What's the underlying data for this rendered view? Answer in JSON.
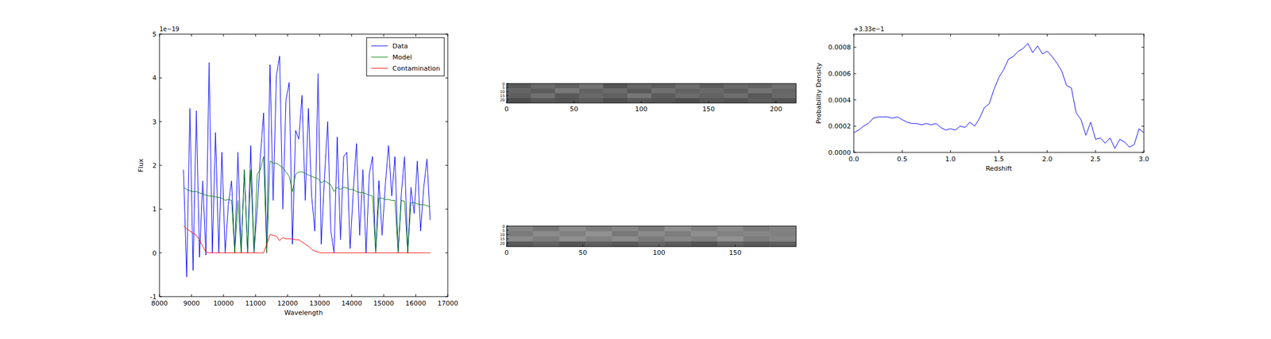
{
  "chart_data": [
    {
      "type": "line",
      "x_label": "Wavelength",
      "y_label": "Flux",
      "annotations": [
        "1e−19"
      ],
      "xlim": [
        8000,
        17000
      ],
      "xticks": [
        8000,
        9000,
        10000,
        11000,
        12000,
        13000,
        14000,
        15000,
        16000,
        17000
      ],
      "ylim": [
        -1,
        5
      ],
      "yticks": [
        -1,
        0,
        1,
        2,
        3,
        4,
        5
      ],
      "legend": "upper right",
      "x": [
        8750,
        8850,
        8950,
        9050,
        9150,
        9250,
        9350,
        9450,
        9550,
        9650,
        9750,
        9850,
        9950,
        10050,
        10150,
        10250,
        10350,
        10450,
        10550,
        10650,
        10750,
        10850,
        10950,
        11050,
        11150,
        11250,
        11350,
        11450,
        11550,
        11650,
        11750,
        11850,
        11950,
        12050,
        12150,
        12250,
        12350,
        12450,
        12550,
        12650,
        12750,
        12850,
        12950,
        13050,
        13150,
        13250,
        13350,
        13450,
        13550,
        13650,
        13750,
        13850,
        13950,
        14050,
        14150,
        14250,
        14350,
        14450,
        14550,
        14650,
        14750,
        14850,
        14950,
        15050,
        15150,
        15250,
        15350,
        15450,
        15550,
        15650,
        15750,
        15850,
        15950,
        16050,
        16150,
        16250,
        16350,
        16450
      ],
      "series": [
        {
          "name": "Data",
          "color": "#0000ff",
          "values": [
            1.9,
            -0.55,
            3.3,
            -0.4,
            3.25,
            -0.1,
            1.65,
            -0.05,
            4.35,
            0.0,
            2.75,
            0.0,
            2.3,
            0.0,
            1.1,
            1.65,
            0.0,
            2.3,
            0.0,
            1.9,
            0.0,
            2.45,
            0.0,
            1.0,
            2.2,
            3.2,
            0.0,
            4.3,
            1.2,
            4.05,
            4.5,
            1.0,
            3.5,
            3.9,
            0.2,
            2.8,
            2.6,
            3.6,
            1.2,
            3.3,
            1.3,
            0.5,
            4.1,
            0.2,
            1.7,
            3.0,
            0.5,
            0.0,
            2.65,
            0.3,
            2.2,
            2.3,
            0.1,
            1.4,
            2.5,
            0.4,
            1.9,
            0.0,
            1.8,
            2.2,
            0.0,
            1.65,
            0.4,
            1.55,
            2.45,
            1.3,
            2.2,
            0.0,
            1.35,
            2.2,
            0.0,
            1.5,
            0.9,
            2.1,
            0.5,
            1.5,
            2.15,
            0.75
          ]
        },
        {
          "name": "Model",
          "color": "#008000",
          "values": [
            1.5,
            1.45,
            1.42,
            1.4,
            1.4,
            1.37,
            1.35,
            1.32,
            1.3,
            1.3,
            1.28,
            1.27,
            1.25,
            1.2,
            1.22,
            1.2,
            0,
            1.2,
            0,
            1.9,
            0,
            1.9,
            0,
            1.8,
            1.9,
            2.2,
            0,
            2.1,
            2.05,
            2.05,
            2.0,
            1.95,
            1.85,
            1.75,
            1.4,
            1.8,
            1.85,
            1.85,
            1.82,
            1.78,
            1.75,
            1.72,
            1.7,
            1.6,
            1.65,
            1.6,
            1.55,
            1.4,
            1.5,
            1.45,
            1.5,
            1.48,
            1.45,
            1.45,
            1.4,
            1.38,
            1.38,
            1.35,
            1.32,
            1.3,
            0,
            1.25,
            1.25,
            1.22,
            1.22,
            1.2,
            1.2,
            0,
            1.2,
            1.18,
            0,
            1.15,
            1.15,
            1.12,
            1.1,
            1.1,
            1.08,
            1.05
          ]
        },
        {
          "name": "Contamination",
          "color": "#ff0000",
          "values": [
            0.62,
            0.55,
            0.5,
            0.45,
            0.4,
            0.3,
            0.15,
            0.02,
            0,
            0,
            0,
            0,
            0,
            0,
            0,
            0,
            0,
            0,
            0,
            0,
            0,
            0,
            0,
            0,
            0,
            0,
            0.2,
            0.42,
            0.4,
            0.38,
            0.28,
            0.35,
            0.32,
            0.32,
            0.32,
            0.3,
            0.3,
            0.25,
            0.2,
            0.15,
            0.08,
            0.04,
            0.02,
            0,
            0,
            0,
            0,
            0,
            0,
            0,
            0,
            0,
            0,
            0,
            0,
            0,
            0,
            0,
            0,
            0,
            0,
            0,
            0,
            0,
            0,
            0,
            0,
            0,
            0,
            0,
            0,
            0,
            0,
            0,
            0,
            0,
            0,
            0
          ]
        }
      ]
    },
    {
      "type": "heatmap",
      "xlim": [
        0,
        215
      ],
      "xticks": [
        0,
        50,
        100,
        150,
        200
      ],
      "ylim": [
        0,
        24
      ],
      "yticks": [
        0,
        5,
        10,
        15,
        20
      ],
      "cells": [
        [
          0.35,
          0.42,
          0.38,
          0.45,
          0.33,
          0.4,
          0.37,
          0.43,
          0.36,
          0.41,
          0.39,
          0.44
        ],
        [
          0.4,
          0.36,
          0.47,
          0.39,
          0.42,
          0.35,
          0.44,
          0.38,
          0.41,
          0.37,
          0.45,
          0.4
        ],
        [
          0.37,
          0.44,
          0.35,
          0.41,
          0.38,
          0.46,
          0.36,
          0.42,
          0.39,
          0.43,
          0.35,
          0.41
        ],
        [
          0.3,
          0.34,
          0.32,
          0.36,
          0.31,
          0.35,
          0.33,
          0.3,
          0.34,
          0.32,
          0.36,
          0.33
        ]
      ]
    },
    {
      "type": "heatmap",
      "xlim": [
        0,
        190
      ],
      "xticks": [
        0,
        50,
        100,
        150
      ],
      "ylim": [
        0,
        24
      ],
      "yticks": [
        0,
        5,
        10,
        15,
        20
      ],
      "cells": [
        [
          0.52,
          0.46,
          0.55,
          0.49,
          0.53,
          0.47,
          0.56,
          0.5,
          0.54,
          0.48,
          0.51
        ],
        [
          0.48,
          0.55,
          0.5,
          0.57,
          0.47,
          0.54,
          0.49,
          0.56,
          0.51,
          0.53,
          0.5
        ],
        [
          0.54,
          0.49,
          0.56,
          0.51,
          0.55,
          0.48,
          0.53,
          0.5,
          0.57,
          0.49,
          0.52
        ],
        [
          0.35,
          0.38,
          0.33,
          0.37,
          0.34,
          0.39,
          0.36,
          0.32,
          0.38,
          0.35,
          0.37
        ]
      ]
    },
    {
      "type": "line",
      "x_label": "Redshift",
      "y_label": "Probability Density",
      "annotations": [
        "+3.33e−1"
      ],
      "xlim": [
        0,
        3
      ],
      "xticks": [
        {
          "value": 0,
          "label": "0.0"
        },
        0.5,
        {
          "value": 1,
          "label": "1.0"
        },
        1.5,
        {
          "value": 2,
          "label": "2.0"
        },
        2.5,
        {
          "value": 3,
          "label": "3.0"
        }
      ],
      "ylim": [
        0,
        0.0009
      ],
      "yticks": [
        {
          "value": 0,
          "label": "0.0000"
        },
        0.0002,
        0.0004,
        0.0006,
        0.0008
      ],
      "color": "#0000ff",
      "x": [
        0,
        0.05,
        0.1,
        0.15,
        0.2,
        0.25,
        0.3,
        0.35,
        0.4,
        0.45,
        0.5,
        0.55,
        0.6,
        0.65,
        0.7,
        0.75,
        0.8,
        0.85,
        0.9,
        0.95,
        1,
        1.05,
        1.1,
        1.15,
        1.2,
        1.25,
        1.3,
        1.35,
        1.4,
        1.45,
        1.5,
        1.55,
        1.6,
        1.65,
        1.7,
        1.75,
        1.8,
        1.85,
        1.9,
        1.95,
        2,
        2.05,
        2.1,
        2.15,
        2.2,
        2.25,
        2.3,
        2.35,
        2.4,
        2.45,
        2.5,
        2.55,
        2.6,
        2.65,
        2.7,
        2.75,
        2.8,
        2.85,
        2.9,
        2.95,
        3
      ],
      "values": [
        0.00015,
        0.00017,
        0.0002,
        0.00022,
        0.00026,
        0.00027,
        0.00027,
        0.00027,
        0.00026,
        0.00027,
        0.00025,
        0.00023,
        0.00022,
        0.00022,
        0.00021,
        0.00022,
        0.00021,
        0.00022,
        0.00019,
        0.00017,
        0.00018,
        0.00017,
        0.0002,
        0.00019,
        0.00023,
        0.0002,
        0.00026,
        0.00034,
        0.00037,
        0.00048,
        0.00057,
        0.00063,
        0.00071,
        0.00073,
        0.00077,
        0.00079,
        0.00083,
        0.00076,
        0.00081,
        0.00075,
        0.00077,
        0.00073,
        0.00068,
        0.00062,
        0.00051,
        0.00049,
        0.0003,
        0.00025,
        0.00013,
        0.00023,
        0.0001,
        0.00011,
        7e-05,
        0.00011,
        3e-05,
        0.0001,
        8e-05,
        4e-05,
        6e-05,
        0.00018,
        0.00015
      ]
    }
  ]
}
